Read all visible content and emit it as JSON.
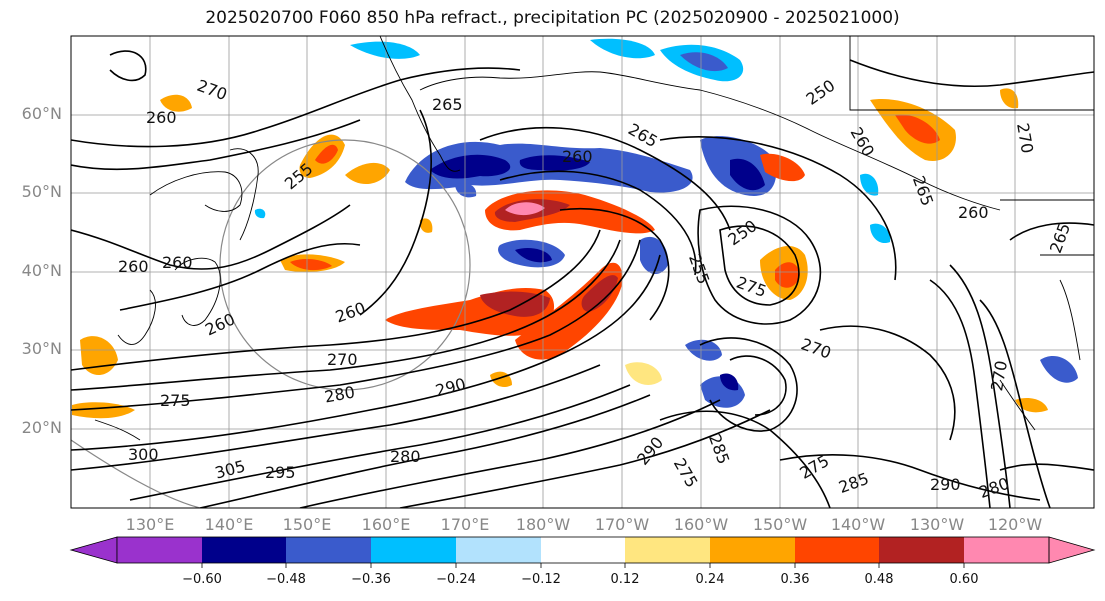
{
  "title": "2025020700 F060 850 hPa refract., precipitation PC (2025020900 - 2025021000)",
  "lat_labels": [
    "60°N",
    "50°N",
    "40°N",
    "30°N",
    "20°N"
  ],
  "lon_labels": [
    "130°E",
    "140°E",
    "150°E",
    "160°E",
    "170°E",
    "180°W",
    "170°W",
    "160°W",
    "150°W",
    "140°W",
    "130°W",
    "120°W"
  ],
  "colorbar": {
    "ticks": [
      "−0.60",
      "−0.48",
      "−0.36",
      "−0.24",
      "−0.12",
      "0.12",
      "0.24",
      "0.36",
      "0.48",
      "0.60"
    ],
    "colors": [
      "#9a32cd",
      "#00008b",
      "#3a5bcc",
      "#00bfff",
      "#b2e2fd",
      "#ffffff",
      "#ffe680",
      "#ffa500",
      "#ff4500",
      "#b22222",
      "#ff88b0"
    ]
  },
  "contour_labels": [
    "270",
    "265",
    "260",
    "255",
    "260",
    "260",
    "260",
    "265",
    "250",
    "260",
    "265",
    "260",
    "250",
    "255",
    "275",
    "260",
    "265",
    "270",
    "260",
    "270",
    "290",
    "280",
    "275",
    "300",
    "305",
    "295",
    "280",
    "270",
    "290",
    "275",
    "285",
    "275",
    "270",
    "285",
    "290",
    "280"
  ]
}
